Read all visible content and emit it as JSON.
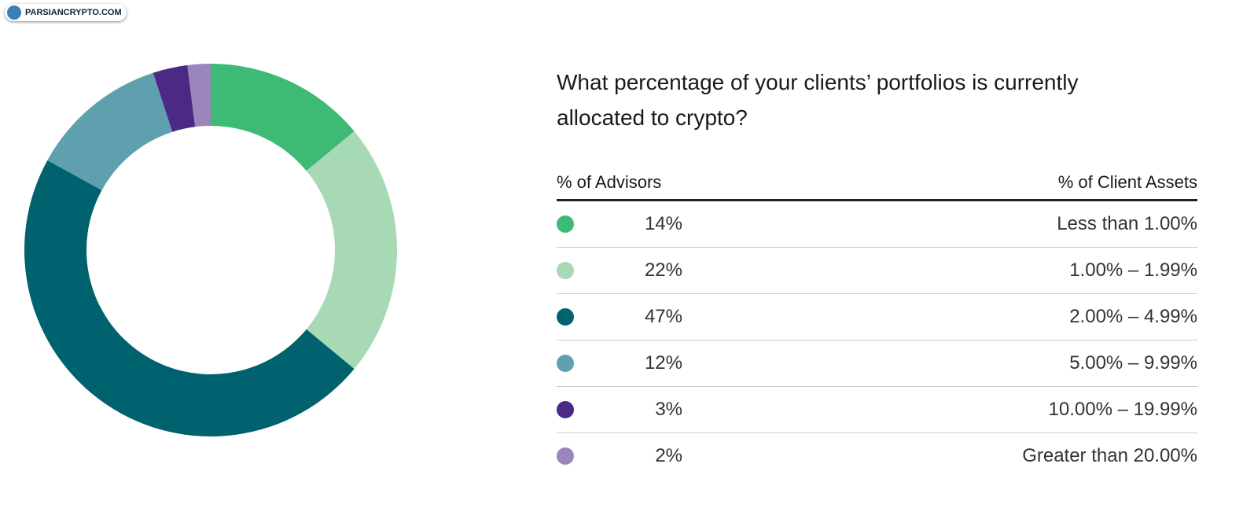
{
  "watermark": "PARSIANCRYPTO.COM",
  "chart_data": {
    "type": "donut",
    "title": "What percentage of your clients’ portfolios is currently allocated to crypto?",
    "value_header": "% of Advisors",
    "category_header": "% of Client Assets",
    "categories": [
      "Less than 1.00%",
      "1.00% – 1.99%",
      "2.00% – 4.99%",
      "5.00% – 9.99%",
      "10.00% – 19.99%",
      "Greater than 20.00%"
    ],
    "values": [
      14,
      22,
      47,
      12,
      3,
      2
    ],
    "value_labels": [
      "14%",
      "22%",
      "47%",
      "12%",
      "3%",
      "2%"
    ],
    "colors": [
      "#3dba74",
      "#a6d9b4",
      "#00626e",
      "#5fa0ae",
      "#4b2a85",
      "#9b85bd"
    ]
  }
}
